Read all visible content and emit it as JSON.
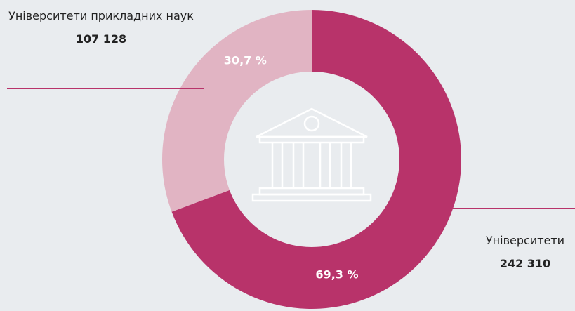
{
  "chart_data": {
    "type": "pie",
    "donut": true,
    "categories": [
      "Університети",
      "Університети прикладних наук"
    ],
    "values": [
      69.3,
      30.7
    ],
    "value_labels": [
      "69,3 %",
      "30,7 %"
    ],
    "counts": [
      242310,
      107128
    ],
    "count_labels": [
      "242 310",
      "107 128"
    ],
    "colors": [
      "#b8336a",
      "#e1b4c3"
    ]
  }
}
